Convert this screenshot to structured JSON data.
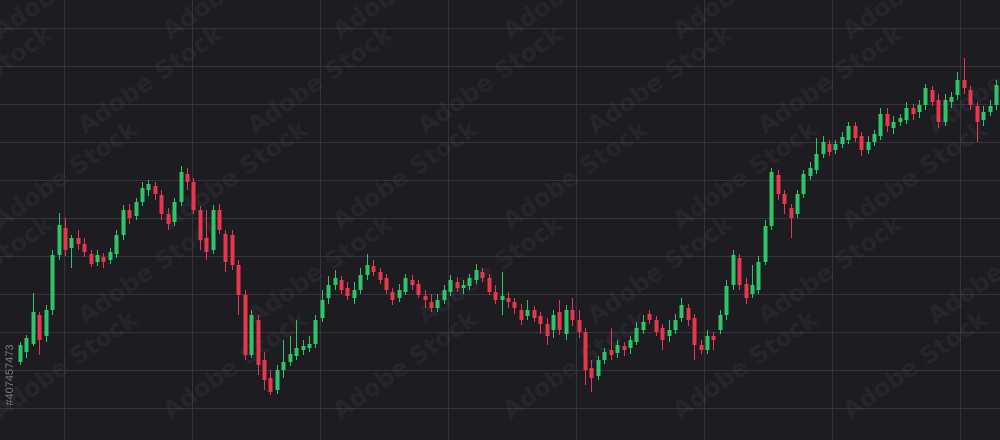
{
  "watermark": {
    "text": "Adobe Stock"
  },
  "stock_id": "#407457473",
  "colors": {
    "background": "#1c1c21",
    "grid": "#34343b",
    "up": "#2ec467",
    "down": "#e8364f"
  },
  "chart_data": {
    "type": "candlestick",
    "title": "",
    "xlabel": "",
    "ylabel": "",
    "grid": true,
    "legend": "none",
    "ylim": [
      0,
      440
    ],
    "candles": [
      {
        "o": 78,
        "c": 95,
        "h": 98,
        "l": 75
      },
      {
        "o": 88,
        "c": 102,
        "h": 105,
        "l": 82
      },
      {
        "o": 96,
        "c": 128,
        "h": 147,
        "l": 94
      },
      {
        "o": 125,
        "c": 100,
        "h": 128,
        "l": 85
      },
      {
        "o": 104,
        "c": 130,
        "h": 135,
        "l": 98
      },
      {
        "o": 130,
        "c": 185,
        "h": 190,
        "l": 125
      },
      {
        "o": 185,
        "c": 215,
        "h": 227,
        "l": 180
      },
      {
        "o": 212,
        "c": 190,
        "h": 222,
        "l": 184
      },
      {
        "o": 192,
        "c": 202,
        "h": 205,
        "l": 172
      },
      {
        "o": 202,
        "c": 196,
        "h": 210,
        "l": 190
      },
      {
        "o": 196,
        "c": 188,
        "h": 202,
        "l": 183
      },
      {
        "o": 186,
        "c": 176,
        "h": 190,
        "l": 173
      },
      {
        "o": 178,
        "c": 185,
        "h": 190,
        "l": 174
      },
      {
        "o": 183,
        "c": 178,
        "h": 187,
        "l": 172
      },
      {
        "o": 180,
        "c": 188,
        "h": 192,
        "l": 176
      },
      {
        "o": 186,
        "c": 205,
        "h": 210,
        "l": 182
      },
      {
        "o": 205,
        "c": 230,
        "h": 235,
        "l": 200
      },
      {
        "o": 230,
        "c": 222,
        "h": 236,
        "l": 216
      },
      {
        "o": 224,
        "c": 238,
        "h": 242,
        "l": 220
      },
      {
        "o": 238,
        "c": 252,
        "h": 258,
        "l": 234
      },
      {
        "o": 250,
        "c": 256,
        "h": 260,
        "l": 244
      },
      {
        "o": 254,
        "c": 246,
        "h": 258,
        "l": 240
      },
      {
        "o": 245,
        "c": 226,
        "h": 250,
        "l": 220
      },
      {
        "o": 226,
        "c": 216,
        "h": 232,
        "l": 210
      },
      {
        "o": 218,
        "c": 238,
        "h": 242,
        "l": 214
      },
      {
        "o": 238,
        "c": 268,
        "h": 274,
        "l": 234
      },
      {
        "o": 266,
        "c": 258,
        "h": 272,
        "l": 250
      },
      {
        "o": 258,
        "c": 230,
        "h": 262,
        "l": 226
      },
      {
        "o": 230,
        "c": 200,
        "h": 234,
        "l": 190
      },
      {
        "o": 202,
        "c": 188,
        "h": 230,
        "l": 180
      },
      {
        "o": 190,
        "c": 230,
        "h": 235,
        "l": 186
      },
      {
        "o": 230,
        "c": 210,
        "h": 236,
        "l": 206
      },
      {
        "o": 206,
        "c": 178,
        "h": 210,
        "l": 168
      },
      {
        "o": 205,
        "c": 175,
        "h": 210,
        "l": 170
      },
      {
        "o": 175,
        "c": 145,
        "h": 180,
        "l": 125
      },
      {
        "o": 145,
        "c": 85,
        "h": 150,
        "l": 80
      },
      {
        "o": 85,
        "c": 125,
        "h": 130,
        "l": 82
      },
      {
        "o": 120,
        "c": 75,
        "h": 125,
        "l": 65
      },
      {
        "o": 80,
        "c": 60,
        "h": 88,
        "l": 50
      },
      {
        "o": 62,
        "c": 48,
        "h": 70,
        "l": 45
      },
      {
        "o": 50,
        "c": 70,
        "h": 75,
        "l": 46
      },
      {
        "o": 70,
        "c": 78,
        "h": 100,
        "l": 62
      },
      {
        "o": 78,
        "c": 86,
        "h": 104,
        "l": 74
      },
      {
        "o": 84,
        "c": 92,
        "h": 120,
        "l": 80
      },
      {
        "o": 90,
        "c": 94,
        "h": 100,
        "l": 85
      },
      {
        "o": 92,
        "c": 96,
        "h": 104,
        "l": 88
      },
      {
        "o": 96,
        "c": 120,
        "h": 125,
        "l": 92
      },
      {
        "o": 122,
        "c": 140,
        "h": 150,
        "l": 118
      },
      {
        "o": 142,
        "c": 155,
        "h": 164,
        "l": 136
      },
      {
        "o": 155,
        "c": 162,
        "h": 170,
        "l": 150
      },
      {
        "o": 160,
        "c": 150,
        "h": 164,
        "l": 146
      },
      {
        "o": 152,
        "c": 144,
        "h": 158,
        "l": 140
      },
      {
        "o": 142,
        "c": 150,
        "h": 158,
        "l": 136
      },
      {
        "o": 150,
        "c": 165,
        "h": 172,
        "l": 146
      },
      {
        "o": 165,
        "c": 175,
        "h": 186,
        "l": 160
      },
      {
        "o": 174,
        "c": 168,
        "h": 180,
        "l": 164
      },
      {
        "o": 168,
        "c": 160,
        "h": 172,
        "l": 156
      },
      {
        "o": 162,
        "c": 150,
        "h": 166,
        "l": 146
      },
      {
        "o": 148,
        "c": 140,
        "h": 152,
        "l": 135
      },
      {
        "o": 142,
        "c": 150,
        "h": 156,
        "l": 138
      },
      {
        "o": 148,
        "c": 162,
        "h": 166,
        "l": 145
      },
      {
        "o": 160,
        "c": 155,
        "h": 165,
        "l": 150
      },
      {
        "o": 156,
        "c": 145,
        "h": 160,
        "l": 142
      },
      {
        "o": 144,
        "c": 140,
        "h": 150,
        "l": 132
      },
      {
        "o": 138,
        "c": 132,
        "h": 146,
        "l": 128
      },
      {
        "o": 132,
        "c": 140,
        "h": 146,
        "l": 128
      },
      {
        "o": 140,
        "c": 150,
        "h": 155,
        "l": 136
      },
      {
        "o": 148,
        "c": 160,
        "h": 165,
        "l": 144
      },
      {
        "o": 158,
        "c": 152,
        "h": 163,
        "l": 148
      },
      {
        "o": 152,
        "c": 155,
        "h": 160,
        "l": 146
      },
      {
        "o": 154,
        "c": 162,
        "h": 166,
        "l": 150
      },
      {
        "o": 160,
        "c": 170,
        "h": 176,
        "l": 156
      },
      {
        "o": 168,
        "c": 162,
        "h": 172,
        "l": 158
      },
      {
        "o": 162,
        "c": 148,
        "h": 166,
        "l": 145
      },
      {
        "o": 148,
        "c": 140,
        "h": 155,
        "l": 136
      },
      {
        "o": 140,
        "c": 144,
        "h": 168,
        "l": 125
      },
      {
        "o": 142,
        "c": 138,
        "h": 148,
        "l": 132
      },
      {
        "o": 138,
        "c": 132,
        "h": 142,
        "l": 126
      },
      {
        "o": 130,
        "c": 120,
        "h": 136,
        "l": 115
      },
      {
        "o": 124,
        "c": 130,
        "h": 140,
        "l": 120
      },
      {
        "o": 130,
        "c": 122,
        "h": 134,
        "l": 118
      },
      {
        "o": 124,
        "c": 116,
        "h": 128,
        "l": 106
      },
      {
        "o": 116,
        "c": 104,
        "h": 122,
        "l": 95
      },
      {
        "o": 110,
        "c": 125,
        "h": 130,
        "l": 102
      },
      {
        "o": 128,
        "c": 110,
        "h": 140,
        "l": 105
      },
      {
        "o": 106,
        "c": 130,
        "h": 135,
        "l": 100
      },
      {
        "o": 130,
        "c": 120,
        "h": 142,
        "l": 114
      },
      {
        "o": 120,
        "c": 108,
        "h": 130,
        "l": 102
      },
      {
        "o": 108,
        "c": 70,
        "h": 112,
        "l": 55
      },
      {
        "o": 72,
        "c": 62,
        "h": 80,
        "l": 48
      },
      {
        "o": 64,
        "c": 80,
        "h": 84,
        "l": 60
      },
      {
        "o": 80,
        "c": 88,
        "h": 92,
        "l": 76
      },
      {
        "o": 90,
        "c": 85,
        "h": 112,
        "l": 80
      },
      {
        "o": 87,
        "c": 95,
        "h": 100,
        "l": 82
      },
      {
        "o": 94,
        "c": 90,
        "h": 98,
        "l": 84
      },
      {
        "o": 92,
        "c": 100,
        "h": 104,
        "l": 86
      },
      {
        "o": 98,
        "c": 112,
        "h": 118,
        "l": 95
      },
      {
        "o": 110,
        "c": 118,
        "h": 125,
        "l": 106
      },
      {
        "o": 126,
        "c": 120,
        "h": 130,
        "l": 116
      },
      {
        "o": 120,
        "c": 108,
        "h": 124,
        "l": 104
      },
      {
        "o": 112,
        "c": 100,
        "h": 116,
        "l": 90
      },
      {
        "o": 104,
        "c": 110,
        "h": 120,
        "l": 98
      },
      {
        "o": 110,
        "c": 120,
        "h": 126,
        "l": 106
      },
      {
        "o": 122,
        "c": 135,
        "h": 142,
        "l": 118
      },
      {
        "o": 132,
        "c": 120,
        "h": 136,
        "l": 114
      },
      {
        "o": 122,
        "c": 95,
        "h": 126,
        "l": 80
      },
      {
        "o": 95,
        "c": 90,
        "h": 100,
        "l": 86
      },
      {
        "o": 90,
        "c": 104,
        "h": 110,
        "l": 86
      },
      {
        "o": 104,
        "c": 100,
        "h": 108,
        "l": 90
      },
      {
        "o": 110,
        "c": 125,
        "h": 130,
        "l": 106
      },
      {
        "o": 125,
        "c": 154,
        "h": 160,
        "l": 120
      },
      {
        "o": 155,
        "c": 185,
        "h": 190,
        "l": 150
      },
      {
        "o": 182,
        "c": 155,
        "h": 186,
        "l": 150
      },
      {
        "o": 156,
        "c": 142,
        "h": 162,
        "l": 136
      },
      {
        "o": 146,
        "c": 155,
        "h": 175,
        "l": 142
      },
      {
        "o": 150,
        "c": 178,
        "h": 184,
        "l": 146
      },
      {
        "o": 178,
        "c": 214,
        "h": 220,
        "l": 175
      },
      {
        "o": 214,
        "c": 268,
        "h": 272,
        "l": 210
      },
      {
        "o": 265,
        "c": 246,
        "h": 270,
        "l": 240
      },
      {
        "o": 246,
        "c": 236,
        "h": 250,
        "l": 226
      },
      {
        "o": 232,
        "c": 222,
        "h": 236,
        "l": 202
      },
      {
        "o": 226,
        "c": 246,
        "h": 250,
        "l": 222
      },
      {
        "o": 246,
        "c": 266,
        "h": 270,
        "l": 242
      },
      {
        "o": 264,
        "c": 272,
        "h": 278,
        "l": 260
      },
      {
        "o": 270,
        "c": 286,
        "h": 302,
        "l": 266
      },
      {
        "o": 286,
        "c": 298,
        "h": 304,
        "l": 282
      },
      {
        "o": 296,
        "c": 288,
        "h": 300,
        "l": 284
      },
      {
        "o": 290,
        "c": 296,
        "h": 300,
        "l": 286
      },
      {
        "o": 296,
        "c": 303,
        "h": 308,
        "l": 292
      },
      {
        "o": 300,
        "c": 314,
        "h": 318,
        "l": 296
      },
      {
        "o": 314,
        "c": 302,
        "h": 318,
        "l": 298
      },
      {
        "o": 304,
        "c": 290,
        "h": 308,
        "l": 284
      },
      {
        "o": 290,
        "c": 298,
        "h": 304,
        "l": 286
      },
      {
        "o": 298,
        "c": 306,
        "h": 310,
        "l": 294
      },
      {
        "o": 304,
        "c": 326,
        "h": 332,
        "l": 300
      },
      {
        "o": 326,
        "c": 314,
        "h": 332,
        "l": 308
      },
      {
        "o": 312,
        "c": 318,
        "h": 324,
        "l": 306
      },
      {
        "o": 318,
        "c": 322,
        "h": 326,
        "l": 314
      },
      {
        "o": 320,
        "c": 332,
        "h": 338,
        "l": 316
      },
      {
        "o": 332,
        "c": 326,
        "h": 336,
        "l": 320
      },
      {
        "o": 328,
        "c": 335,
        "h": 340,
        "l": 322
      },
      {
        "o": 335,
        "c": 352,
        "h": 356,
        "l": 330
      },
      {
        "o": 350,
        "c": 338,
        "h": 354,
        "l": 334
      },
      {
        "o": 340,
        "c": 318,
        "h": 346,
        "l": 312
      },
      {
        "o": 318,
        "c": 340,
        "h": 346,
        "l": 314
      },
      {
        "o": 338,
        "c": 343,
        "h": 348,
        "l": 332
      },
      {
        "o": 345,
        "c": 360,
        "h": 368,
        "l": 340
      },
      {
        "o": 360,
        "c": 352,
        "h": 382,
        "l": 346
      },
      {
        "o": 350,
        "c": 335,
        "h": 354,
        "l": 330
      },
      {
        "o": 334,
        "c": 318,
        "h": 338,
        "l": 298
      },
      {
        "o": 320,
        "c": 328,
        "h": 334,
        "l": 314
      },
      {
        "o": 328,
        "c": 334,
        "h": 340,
        "l": 324
      },
      {
        "o": 335,
        "c": 355,
        "h": 360,
        "l": 330
      }
    ]
  }
}
